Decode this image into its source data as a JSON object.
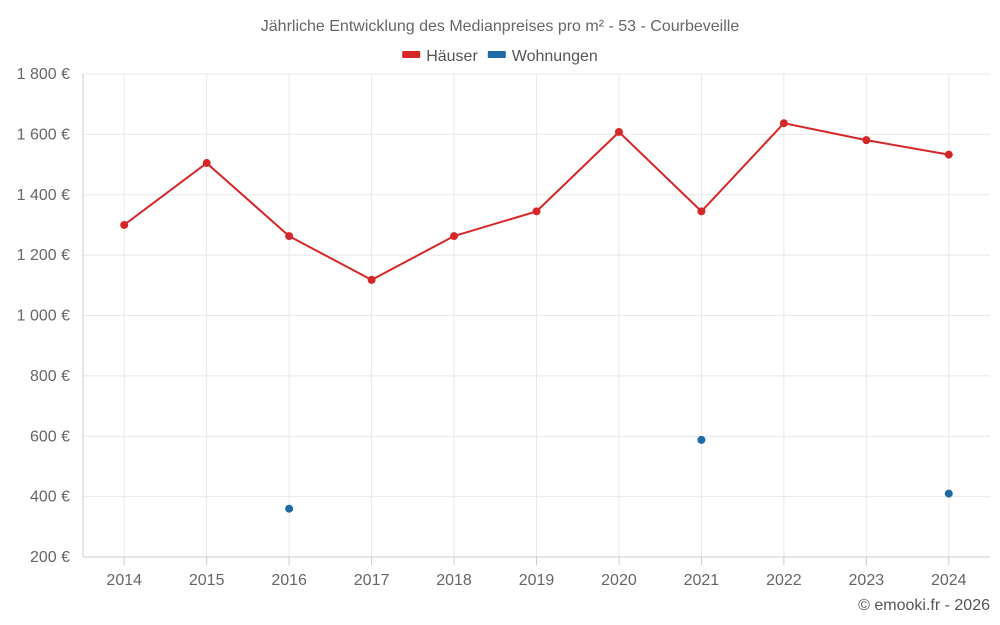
{
  "chart_data": {
    "type": "line",
    "title": "Jährliche Entwicklung des Medianpreises pro m² - 53 - Courbeveille",
    "categories": [
      "2014",
      "2015",
      "2016",
      "2017",
      "2018",
      "2019",
      "2020",
      "2021",
      "2022",
      "2023",
      "2024"
    ],
    "series": [
      {
        "name": "Häuser",
        "color": "#d62728",
        "values": [
          1300,
          1505,
          1263,
          1118,
          1263,
          1345,
          1608,
          1345,
          1637,
          1581,
          1533
        ]
      },
      {
        "name": "Wohnungen",
        "color": "#1f6aa5",
        "values": [
          null,
          null,
          360,
          null,
          null,
          null,
          null,
          588,
          null,
          null,
          410
        ]
      }
    ],
    "ylim": [
      200,
      1800
    ],
    "yticks": [
      200,
      400,
      600,
      800,
      1000,
      1200,
      1400,
      1600,
      1800
    ],
    "ytick_labels": [
      "200 €",
      "400 €",
      "600 €",
      "800 €",
      "1 000 €",
      "1 200 €",
      "1 400 €",
      "1 600 €",
      "1 800 €"
    ],
    "xlabel": "",
    "ylabel": "",
    "grid": true,
    "legend_position": "top-center"
  },
  "credit": "© emooki.fr - 2026"
}
